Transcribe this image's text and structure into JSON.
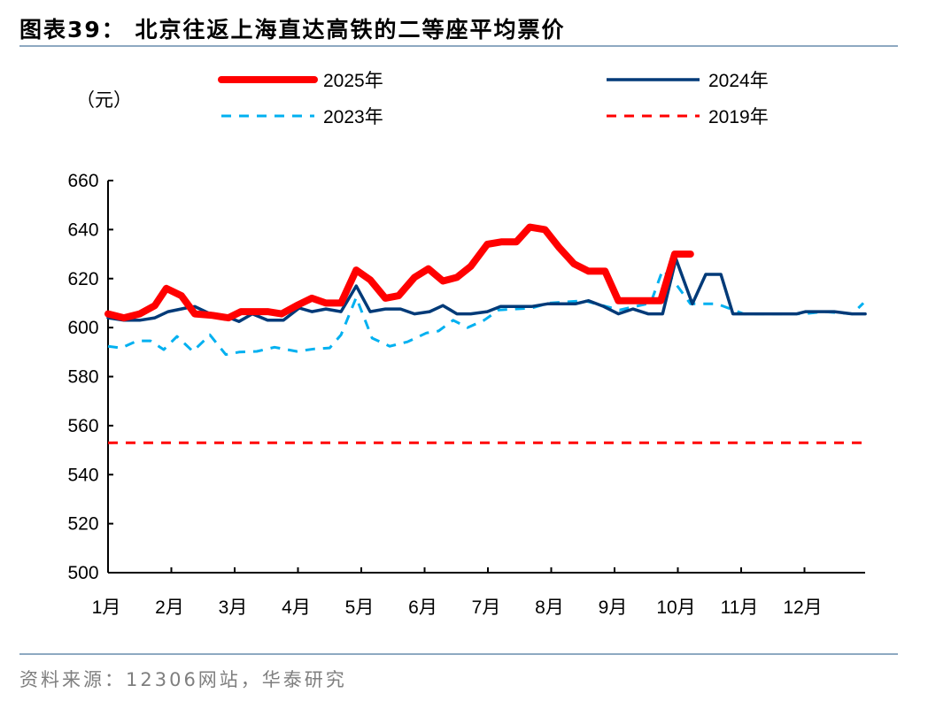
{
  "title": "图表39：  北京往返上海直达高铁的二等座平均票价",
  "source": "资料来源：12306网站，华泰研究",
  "chart_data": {
    "type": "line",
    "title": "北京往返上海直达高铁的二等座平均票价",
    "ylabel": "（元）",
    "xlabel": "",
    "ylim": [
      500,
      660
    ],
    "yticks": [
      500,
      520,
      540,
      560,
      580,
      600,
      620,
      640,
      660
    ],
    "xlim": [
      1,
      13
    ],
    "xtick_labels": [
      "1月",
      "2月",
      "3月",
      "4月",
      "5月",
      "6月",
      "7月",
      "8月",
      "9月",
      "10月",
      "11月",
      "12月"
    ],
    "grid": false,
    "legend_placement": "top",
    "series": [
      {
        "name": "2025年",
        "color": "#ff0000",
        "style": "solid-thick",
        "points": [
          [
            1.0,
            605.6
          ],
          [
            1.25,
            604
          ],
          [
            1.5,
            605.6
          ],
          [
            1.74,
            609
          ],
          [
            1.92,
            616
          ],
          [
            2.16,
            613
          ],
          [
            2.37,
            605.6
          ],
          [
            2.65,
            605
          ],
          [
            2.9,
            604
          ],
          [
            3.1,
            606.5
          ],
          [
            3.35,
            606.5
          ],
          [
            3.52,
            606.5
          ],
          [
            3.74,
            605.6
          ],
          [
            3.98,
            609
          ],
          [
            4.22,
            612
          ],
          [
            4.44,
            610
          ],
          [
            4.68,
            610
          ],
          [
            4.92,
            623.5
          ],
          [
            5.14,
            619.5
          ],
          [
            5.38,
            612
          ],
          [
            5.59,
            613
          ],
          [
            5.84,
            620.5
          ],
          [
            6.06,
            624
          ],
          [
            6.29,
            619
          ],
          [
            6.51,
            620.5
          ],
          [
            6.73,
            625
          ],
          [
            6.99,
            634
          ],
          [
            7.22,
            635
          ],
          [
            7.45,
            635
          ],
          [
            7.66,
            641
          ],
          [
            7.9,
            640
          ],
          [
            8.13,
            632.5
          ],
          [
            8.36,
            626
          ],
          [
            8.59,
            623
          ],
          [
            8.85,
            623
          ],
          [
            9.06,
            611
          ],
          [
            9.29,
            611
          ],
          [
            9.53,
            611
          ],
          [
            9.73,
            611
          ],
          [
            9.95,
            630
          ],
          [
            10.2,
            630
          ]
        ]
      },
      {
        "name": "2024年",
        "color": "#003a78",
        "style": "solid",
        "points": [
          [
            1.0,
            604
          ],
          [
            1.25,
            603
          ],
          [
            1.5,
            603
          ],
          [
            1.74,
            604
          ],
          [
            1.95,
            606.5
          ],
          [
            2.23,
            608
          ],
          [
            2.37,
            608.6
          ],
          [
            2.58,
            606
          ],
          [
            2.82,
            605
          ],
          [
            3.07,
            602.5
          ],
          [
            3.28,
            605.6
          ],
          [
            3.52,
            603
          ],
          [
            3.77,
            603
          ],
          [
            4.02,
            608
          ],
          [
            4.22,
            606.5
          ],
          [
            4.44,
            607.6
          ],
          [
            4.68,
            606.5
          ],
          [
            4.92,
            617
          ],
          [
            5.14,
            606.5
          ],
          [
            5.38,
            607.6
          ],
          [
            5.62,
            607.6
          ],
          [
            5.84,
            605.6
          ],
          [
            6.08,
            606.5
          ],
          [
            6.29,
            609
          ],
          [
            6.51,
            605.6
          ],
          [
            6.73,
            605.6
          ],
          [
            6.99,
            606.5
          ],
          [
            7.2,
            608.6
          ],
          [
            7.69,
            608.6
          ],
          [
            7.94,
            609.7
          ],
          [
            8.38,
            609.7
          ],
          [
            8.59,
            611
          ],
          [
            8.83,
            608.6
          ],
          [
            9.06,
            605.6
          ],
          [
            9.29,
            607.6
          ],
          [
            9.53,
            605.6
          ],
          [
            9.76,
            605.6
          ],
          [
            9.97,
            628
          ],
          [
            10.23,
            609.7
          ],
          [
            10.44,
            621.7
          ],
          [
            10.68,
            621.7
          ],
          [
            10.87,
            605.6
          ],
          [
            11.88,
            605.6
          ],
          [
            12.02,
            606.5
          ],
          [
            12.47,
            606.5
          ],
          [
            12.75,
            605.6
          ],
          [
            12.96,
            605.6
          ]
        ]
      },
      {
        "name": "2023年",
        "color": "#00b0f0",
        "style": "dashed",
        "points": [
          [
            1.0,
            592.4
          ],
          [
            1.21,
            591.7
          ],
          [
            1.46,
            594.6
          ],
          [
            1.67,
            594.6
          ],
          [
            1.88,
            591
          ],
          [
            2.09,
            596.4
          ],
          [
            2.34,
            590.3
          ],
          [
            2.61,
            597
          ],
          [
            2.86,
            589
          ],
          [
            3.07,
            590
          ],
          [
            3.35,
            590.3
          ],
          [
            3.63,
            592
          ],
          [
            3.98,
            590.3
          ],
          [
            4.26,
            591.3
          ],
          [
            4.5,
            591.7
          ],
          [
            4.68,
            597
          ],
          [
            4.92,
            612.3
          ],
          [
            5.17,
            595.7
          ],
          [
            5.45,
            592.4
          ],
          [
            5.73,
            594.2
          ],
          [
            6.03,
            597.8
          ],
          [
            6.22,
            598.6
          ],
          [
            6.45,
            603
          ],
          [
            6.68,
            600
          ],
          [
            6.94,
            603
          ],
          [
            7.17,
            607.2
          ],
          [
            7.69,
            608
          ],
          [
            7.97,
            610
          ],
          [
            8.52,
            611
          ],
          [
            9.08,
            607.2
          ],
          [
            9.57,
            610
          ],
          [
            9.76,
            623.5
          ],
          [
            9.92,
            619.5
          ],
          [
            10.2,
            609.7
          ],
          [
            10.62,
            609.7
          ],
          [
            11.04,
            605.6
          ],
          [
            11.99,
            605.6
          ],
          [
            12.3,
            606.5
          ],
          [
            12.76,
            605.6
          ],
          [
            12.93,
            610
          ]
        ]
      },
      {
        "name": "2019年",
        "color": "#ff0000",
        "style": "dashed",
        "points": [
          [
            1.0,
            553
          ],
          [
            12.96,
            553
          ]
        ]
      }
    ]
  }
}
